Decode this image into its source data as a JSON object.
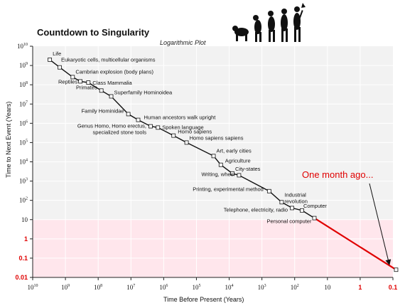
{
  "chart_data": {
    "type": "scatter",
    "title": "Countdown to Singularity",
    "subtitle": "Logarithmic Plot",
    "xlabel": "Time Before Present (Years)",
    "ylabel": "Time to Next Event (Years)",
    "x_scale": "log",
    "y_scale": "log",
    "x_reversed": true,
    "xlim": [
      10000000000,
      0.1
    ],
    "ylim": [
      0.01,
      10000000000
    ],
    "x_ticks": [
      {
        "value": 10000000000,
        "label": "10",
        "exp": "10"
      },
      {
        "value": 1000000000,
        "label": "10",
        "exp": "9"
      },
      {
        "value": 100000000,
        "label": "10",
        "exp": "8"
      },
      {
        "value": 10000000,
        "label": "10",
        "exp": "7"
      },
      {
        "value": 1000000,
        "label": "10",
        "exp": "6"
      },
      {
        "value": 100000,
        "label": "10",
        "exp": "5"
      },
      {
        "value": 10000,
        "label": "10",
        "exp": "4"
      },
      {
        "value": 1000,
        "label": "10",
        "exp": "3"
      },
      {
        "value": 100,
        "label": "10",
        "exp": "2"
      },
      {
        "value": 10,
        "label": "10",
        "exp": ""
      },
      {
        "value": 1,
        "label": "1",
        "exp": "",
        "color": "#e00000"
      },
      {
        "value": 0.1,
        "label": "0.1",
        "exp": "",
        "color": "#e00000"
      }
    ],
    "y_ticks": [
      {
        "value": 10000000000,
        "label": "10",
        "exp": "10"
      },
      {
        "value": 1000000000,
        "label": "10",
        "exp": "9"
      },
      {
        "value": 100000000,
        "label": "10",
        "exp": "8"
      },
      {
        "value": 10000000,
        "label": "10",
        "exp": "7"
      },
      {
        "value": 1000000,
        "label": "10",
        "exp": "6"
      },
      {
        "value": 100000,
        "label": "10",
        "exp": "5"
      },
      {
        "value": 10000,
        "label": "10",
        "exp": "4"
      },
      {
        "value": 1000,
        "label": "10",
        "exp": "3"
      },
      {
        "value": 100,
        "label": "10",
        "exp": "2"
      },
      {
        "value": 10,
        "label": "10",
        "exp": ""
      },
      {
        "value": 1,
        "label": "1",
        "exp": "",
        "color": "#e00000"
      },
      {
        "value": 0.1,
        "label": "0.1",
        "exp": "",
        "color": "#e00000"
      },
      {
        "value": 0.01,
        "label": "0.01",
        "exp": "",
        "color": "#e00000"
      }
    ],
    "grid": true,
    "events": [
      {
        "label": "Life",
        "x": 3000000000,
        "y": 2000000000
      },
      {
        "label": "Eukaryotic cells, multicellular organisms",
        "x": 1500000000,
        "y": 800000000
      },
      {
        "label": "Cambrian explosion (body plans)",
        "x": 600000000,
        "y": 250000000
      },
      {
        "label": "Reptiles",
        "x": 350000000,
        "y": 150000000
      },
      {
        "label": "Class Mammalia",
        "x": 200000000,
        "y": 130000000
      },
      {
        "label": "Primates",
        "x": 80000000,
        "y": 50000000
      },
      {
        "label": "Superfamily Hominoidea",
        "x": 40000000,
        "y": 25000000
      },
      {
        "label": "Family Hominidae",
        "x": 12000000,
        "y": 3000000
      },
      {
        "label": "Human ancestors walk upright",
        "x": 6000000,
        "y": 1500000
      },
      {
        "label": "Genus Homo, Homo erectus, specialized stone tools",
        "x": 2500000,
        "y": 700000
      },
      {
        "label": "Spoken language",
        "x": 1500000,
        "y": 600000
      },
      {
        "label": "Homo sapiens",
        "x": 500000,
        "y": 230000
      },
      {
        "label": "Homo sapiens sapiens",
        "x": 200000,
        "y": 100000
      },
      {
        "label": "Art, early cities",
        "x": 30000,
        "y": 20000
      },
      {
        "label": "Agriculture",
        "x": 18000,
        "y": 7000
      },
      {
        "label": "City-states",
        "x": 8000,
        "y": 2500
      },
      {
        "label": "Writing, wheel",
        "x": 5000,
        "y": 2000
      },
      {
        "label": "Printing, experimental method",
        "x": 600,
        "y": 300
      },
      {
        "label": "Industrial revolution",
        "x": 250,
        "y": 80
      },
      {
        "label": "Telephone, electricity, radio",
        "x": 120,
        "y": 40
      },
      {
        "label": "Computer",
        "x": 60,
        "y": 30
      },
      {
        "label": "Personal computer",
        "x": 25,
        "y": 12
      },
      {
        "label": "",
        "x": 0.08,
        "y": 0.025
      }
    ],
    "extrapolation": {
      "from": {
        "x": 25,
        "y": 12
      },
      "to": {
        "x": 0.08,
        "y": 0.025
      },
      "color": "#e00000"
    },
    "highlight_band": {
      "y_from": 0.01,
      "y_to": 10,
      "color": "#ffe6ec"
    },
    "annotation": {
      "text": "One month ago...",
      "color": "#e00000"
    }
  }
}
